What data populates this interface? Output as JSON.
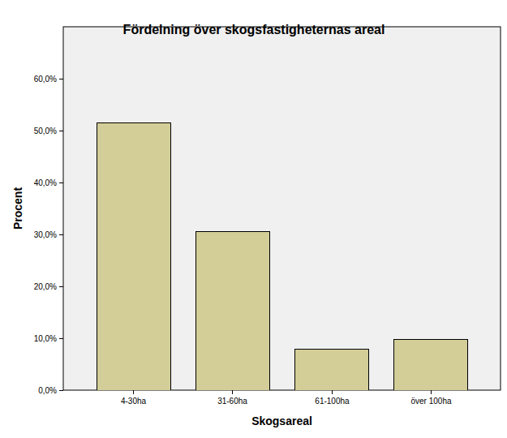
{
  "chart_data": {
    "type": "bar",
    "title": "Fördelning över skogsfastigheternas areal",
    "x_label": "Skogsareal",
    "y_label": "Procent",
    "categories": [
      "4-30ha",
      "31-60ha",
      "61-100ha",
      "över 100ha"
    ],
    "values": [
      51.5,
      30.7,
      7.9,
      9.9
    ],
    "color": "#d3ce98",
    "ylim": [
      0,
      70
    ],
    "yticks": [
      {
        "value": 0,
        "label": "0,0%"
      },
      {
        "value": 10,
        "label": "10,0%"
      },
      {
        "value": 20,
        "label": "20,0%"
      },
      {
        "value": 30,
        "label": "30,0%"
      },
      {
        "value": 40,
        "label": "40,0%"
      },
      {
        "value": 50,
        "label": "50,0%"
      },
      {
        "value": 60,
        "label": "60,0%"
      }
    ],
    "grid": false
  }
}
